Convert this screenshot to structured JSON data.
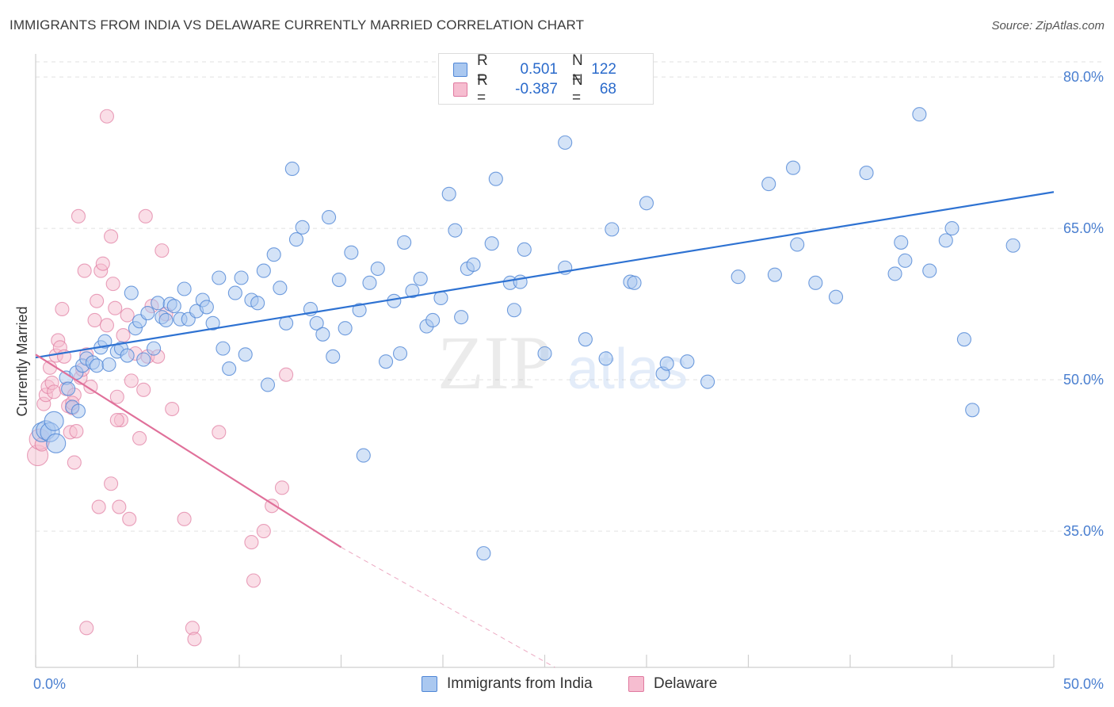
{
  "header": {
    "title": "IMMIGRANTS FROM INDIA VS DELAWARE CURRENTLY MARRIED CORRELATION CHART",
    "source": "Source: ZipAtlas.com"
  },
  "watermark": {
    "zip": "ZIP",
    "atlas": "atlas"
  },
  "colors": {
    "blue_fill": "#aac8f0",
    "blue_stroke": "#4f86d6",
    "blue_line": "#2e72d2",
    "pink_fill": "#f6bdd0",
    "pink_stroke": "#e07aa0",
    "pink_line": "#e0709a",
    "tick_text": "#4a7fd0",
    "grid": "#e2e2e2"
  },
  "legend_top": {
    "rows": [
      {
        "r_label": "R =",
        "r_value": "0.501",
        "n_label": "N =",
        "n_value": "122"
      },
      {
        "r_label": "R =",
        "r_value": "-0.387",
        "n_label": "N =",
        "n_value": "68"
      }
    ]
  },
  "legend_bottom": {
    "items": [
      "Immigrants from India",
      "Delaware"
    ]
  },
  "chart_data": {
    "type": "scatter",
    "ylabel": "Currently Married",
    "xlabel": "",
    "xlim": [
      0,
      50
    ],
    "ylim": [
      21.5,
      81.5
    ],
    "x_tick_labels": [
      "0.0%",
      "50.0%"
    ],
    "y_ticks": [
      35,
      50,
      65,
      80
    ],
    "y_tick_labels": [
      "35.0%",
      "50.0%",
      "65.0%",
      "80.0%"
    ],
    "grid": "horizontal dashed",
    "series": [
      {
        "name": "Immigrants from India",
        "color": "#4f86d6",
        "trend": {
          "x0": 0,
          "y0": 52.2,
          "x1": 50,
          "y1": 68.6
        },
        "points": [
          [
            0.3,
            44.8
          ],
          [
            0.5,
            45.0
          ],
          [
            0.7,
            44.8
          ],
          [
            0.9,
            45.9
          ],
          [
            1.0,
            43.7
          ],
          [
            1.5,
            50.2
          ],
          [
            1.6,
            49.1
          ],
          [
            1.8,
            47.3
          ],
          [
            2.0,
            50.7
          ],
          [
            2.1,
            46.9
          ],
          [
            2.3,
            51.4
          ],
          [
            2.5,
            52.1
          ],
          [
            2.8,
            51.7
          ],
          [
            3.0,
            51.4
          ],
          [
            3.2,
            53.2
          ],
          [
            3.4,
            53.8
          ],
          [
            3.6,
            51.5
          ],
          [
            4.0,
            52.8
          ],
          [
            4.2,
            53.1
          ],
          [
            4.5,
            52.4
          ],
          [
            4.7,
            58.6
          ],
          [
            4.9,
            55.1
          ],
          [
            5.1,
            55.8
          ],
          [
            5.3,
            52.0
          ],
          [
            5.5,
            56.6
          ],
          [
            5.8,
            53.1
          ],
          [
            6.0,
            57.6
          ],
          [
            6.2,
            56.2
          ],
          [
            6.4,
            55.9
          ],
          [
            6.6,
            57.5
          ],
          [
            6.8,
            57.3
          ],
          [
            7.1,
            56.0
          ],
          [
            7.3,
            59.0
          ],
          [
            7.5,
            56.0
          ],
          [
            7.9,
            56.8
          ],
          [
            8.2,
            57.9
          ],
          [
            8.4,
            57.2
          ],
          [
            8.7,
            55.6
          ],
          [
            9.0,
            60.1
          ],
          [
            9.2,
            53.1
          ],
          [
            9.5,
            51.1
          ],
          [
            9.8,
            58.6
          ],
          [
            10.1,
            60.1
          ],
          [
            10.3,
            52.5
          ],
          [
            10.6,
            57.9
          ],
          [
            10.9,
            57.6
          ],
          [
            11.2,
            60.8
          ],
          [
            11.4,
            49.5
          ],
          [
            11.7,
            62.4
          ],
          [
            12.0,
            59.1
          ],
          [
            12.3,
            55.6
          ],
          [
            12.6,
            70.9
          ],
          [
            12.8,
            63.9
          ],
          [
            13.1,
            65.1
          ],
          [
            13.5,
            57.0
          ],
          [
            13.8,
            55.6
          ],
          [
            14.1,
            54.5
          ],
          [
            14.4,
            66.1
          ],
          [
            14.6,
            52.3
          ],
          [
            14.9,
            59.9
          ],
          [
            15.2,
            55.1
          ],
          [
            15.5,
            62.6
          ],
          [
            15.9,
            56.9
          ],
          [
            16.1,
            42.5
          ],
          [
            16.4,
            59.6
          ],
          [
            16.8,
            61.0
          ],
          [
            17.2,
            51.8
          ],
          [
            17.6,
            57.8
          ],
          [
            17.9,
            52.6
          ],
          [
            18.1,
            63.6
          ],
          [
            18.5,
            58.8
          ],
          [
            18.9,
            60.0
          ],
          [
            19.2,
            55.3
          ],
          [
            19.5,
            55.9
          ],
          [
            19.9,
            58.1
          ],
          [
            20.3,
            68.4
          ],
          [
            20.6,
            64.8
          ],
          [
            20.9,
            56.2
          ],
          [
            21.2,
            61.0
          ],
          [
            21.5,
            61.4
          ],
          [
            22.0,
            32.8
          ],
          [
            22.4,
            63.5
          ],
          [
            22.6,
            69.9
          ],
          [
            23.3,
            59.6
          ],
          [
            23.5,
            56.9
          ],
          [
            23.8,
            59.7
          ],
          [
            24.0,
            62.9
          ],
          [
            25.0,
            52.6
          ],
          [
            26.0,
            73.5
          ],
          [
            26.0,
            61.1
          ],
          [
            27.0,
            54.0
          ],
          [
            28.0,
            52.1
          ],
          [
            28.3,
            64.9
          ],
          [
            29.2,
            59.7
          ],
          [
            29.4,
            59.6
          ],
          [
            30.0,
            67.5
          ],
          [
            30.8,
            50.6
          ],
          [
            31.0,
            51.6
          ],
          [
            32.0,
            51.8
          ],
          [
            33.0,
            49.8
          ],
          [
            34.5,
            60.2
          ],
          [
            36.0,
            69.4
          ],
          [
            36.3,
            60.4
          ],
          [
            37.2,
            71.0
          ],
          [
            37.4,
            63.4
          ],
          [
            38.3,
            59.6
          ],
          [
            39.3,
            58.2
          ],
          [
            40.8,
            70.5
          ],
          [
            42.2,
            60.5
          ],
          [
            42.5,
            63.6
          ],
          [
            42.7,
            61.8
          ],
          [
            43.9,
            60.8
          ],
          [
            44.7,
            63.8
          ],
          [
            45.0,
            65.0
          ],
          [
            45.6,
            54.0
          ],
          [
            46.0,
            47.0
          ],
          [
            48.0,
            63.3
          ],
          [
            43.4,
            76.3
          ]
        ]
      },
      {
        "name": "Delaware",
        "color": "#e07aa0",
        "trend": {
          "x0": 0,
          "y0": 52.5,
          "x1": 15,
          "y1": 33.4,
          "dash_x1": 25.5,
          "dash_y1": 20.0
        },
        "points": [
          [
            0.1,
            42.5
          ],
          [
            0.2,
            44.1
          ],
          [
            0.3,
            43.6
          ],
          [
            0.4,
            47.6
          ],
          [
            0.5,
            48.5
          ],
          [
            0.6,
            49.3
          ],
          [
            0.7,
            51.2
          ],
          [
            0.8,
            49.7
          ],
          [
            0.9,
            48.8
          ],
          [
            1.0,
            52.4
          ],
          [
            1.1,
            53.9
          ],
          [
            1.2,
            53.2
          ],
          [
            1.3,
            57.0
          ],
          [
            1.4,
            52.3
          ],
          [
            1.5,
            49.1
          ],
          [
            1.6,
            47.4
          ],
          [
            1.7,
            44.8
          ],
          [
            1.8,
            47.2
          ],
          [
            1.9,
            48.5
          ],
          [
            2.1,
            66.2
          ],
          [
            2.2,
            50.2
          ],
          [
            2.3,
            51.0
          ],
          [
            2.4,
            60.8
          ],
          [
            2.5,
            52.5
          ],
          [
            2.7,
            49.3
          ],
          [
            2.9,
            55.9
          ],
          [
            3.0,
            57.8
          ],
          [
            3.1,
            37.4
          ],
          [
            3.2,
            60.8
          ],
          [
            3.3,
            61.5
          ],
          [
            3.5,
            55.4
          ],
          [
            3.7,
            64.2
          ],
          [
            3.8,
            59.5
          ],
          [
            3.9,
            57.1
          ],
          [
            4.0,
            48.3
          ],
          [
            4.2,
            46.0
          ],
          [
            4.3,
            54.4
          ],
          [
            4.5,
            56.4
          ],
          [
            4.7,
            49.9
          ],
          [
            4.9,
            52.6
          ],
          [
            5.1,
            44.2
          ],
          [
            5.3,
            49.0
          ],
          [
            5.5,
            52.3
          ],
          [
            5.7,
            57.3
          ],
          [
            3.5,
            76.1
          ],
          [
            4.0,
            46.0
          ],
          [
            3.7,
            39.7
          ],
          [
            4.1,
            37.4
          ],
          [
            4.6,
            36.2
          ],
          [
            5.4,
            66.2
          ],
          [
            6.2,
            62.8
          ],
          [
            6.0,
            52.3
          ],
          [
            6.4,
            56.5
          ],
          [
            6.7,
            47.1
          ],
          [
            7.3,
            36.2
          ],
          [
            7.7,
            25.4
          ],
          [
            7.8,
            24.3
          ],
          [
            2.5,
            25.4
          ],
          [
            1.9,
            41.8
          ],
          [
            1.8,
            47.7
          ],
          [
            10.6,
            33.9
          ],
          [
            10.7,
            30.1
          ],
          [
            11.2,
            35.0
          ],
          [
            11.6,
            37.5
          ],
          [
            12.1,
            39.3
          ],
          [
            12.3,
            50.5
          ],
          [
            9.0,
            44.8
          ],
          [
            2.0,
            44.9
          ]
        ]
      }
    ]
  }
}
